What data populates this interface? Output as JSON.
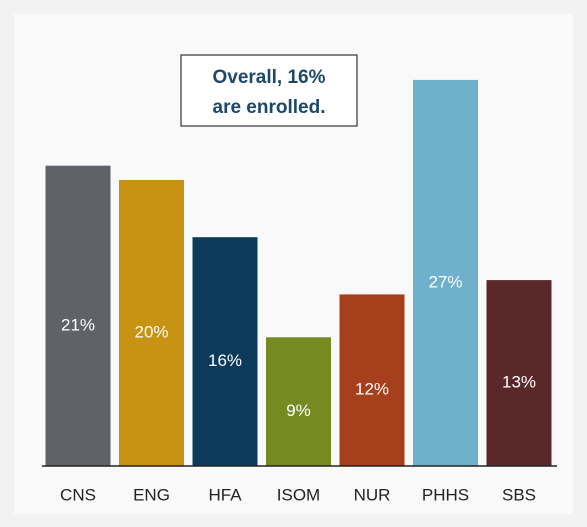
{
  "chart_data": {
    "type": "bar",
    "annotation": [
      "Overall, 16%",
      "are enrolled."
    ],
    "categories": [
      "CNS",
      "ENG",
      "HFA",
      "ISOM",
      "NUR",
      "PHHS",
      "SBS"
    ],
    "values": [
      21,
      20,
      16,
      9,
      12,
      27,
      13
    ],
    "value_labels": [
      "21%",
      "20%",
      "16%",
      "9%",
      "12%",
      "27%",
      "13%"
    ],
    "colors": [
      "#5f6369",
      "#c89212",
      "#0c3a5a",
      "#758a20",
      "#a63f1c",
      "#6fb0cd",
      "#5b2829"
    ]
  }
}
